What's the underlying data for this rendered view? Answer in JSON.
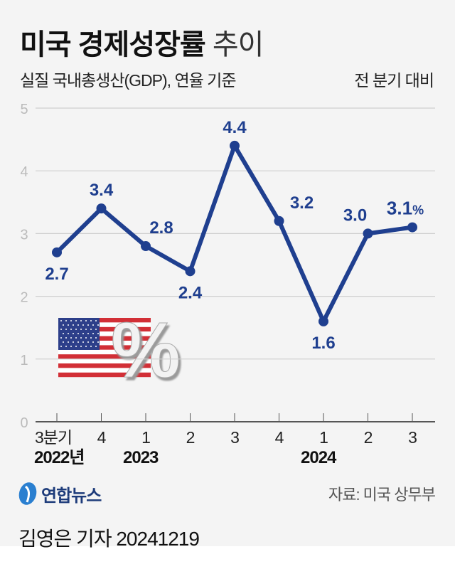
{
  "header": {
    "title_bold": "미국 경제성장률",
    "title_light": "추이",
    "subtitle": "실질 국내총생산(GDP), 연율 기준",
    "unit_note": "전 분기 대비"
  },
  "chart_data": {
    "type": "line",
    "categories": [
      "3분기",
      "4",
      "1",
      "2",
      "3",
      "4",
      "1",
      "2",
      "3"
    ],
    "year_labels": [
      {
        "index": 0,
        "label": "2022년"
      },
      {
        "index": 2,
        "label": "2023"
      },
      {
        "index": 6,
        "label": "2024"
      }
    ],
    "values": [
      2.7,
      3.4,
      2.8,
      2.4,
      4.4,
      3.2,
      1.6,
      3.0,
      3.1
    ],
    "data_labels": [
      "2.7",
      "3.4",
      "2.8",
      "2.4",
      "4.4",
      "3.2",
      "1.6",
      "3.0",
      "3.1"
    ],
    "last_label_unit": "%",
    "ylim": [
      0,
      5
    ],
    "yticks": [
      "0",
      "1",
      "2",
      "3",
      "4",
      "5"
    ],
    "grid": true,
    "line_color": "#1f3f8f"
  },
  "branding": {
    "logo": "연합뉴스",
    "source": "자료: 미국 상무부"
  },
  "footer": {
    "credit": "김영은 기자 20241219"
  }
}
